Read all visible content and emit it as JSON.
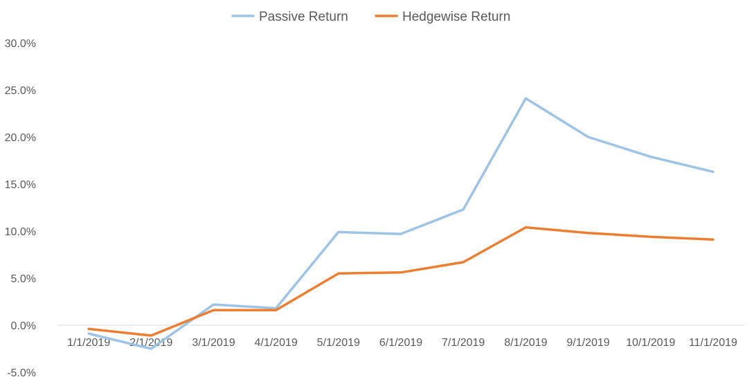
{
  "chart_data": {
    "type": "line",
    "categories": [
      "1/1/2019",
      "2/1/2019",
      "3/1/2019",
      "4/1/2019",
      "5/1/2019",
      "6/1/2019",
      "7/1/2019",
      "8/1/2019",
      "9/1/2019",
      "10/1/2019",
      "11/1/2019"
    ],
    "series": [
      {
        "name": "Passive Return",
        "color": "#9DC3E6",
        "values": [
          -0.009,
          -0.025,
          0.022,
          0.018,
          0.099,
          0.097,
          0.123,
          0.241,
          0.2,
          0.179,
          0.163
        ]
      },
      {
        "name": "Hedgewise Return",
        "color": "#ED7D31",
        "values": [
          -0.004,
          -0.011,
          0.016,
          0.016,
          0.055,
          0.056,
          0.067,
          0.104,
          0.098,
          0.094,
          0.091
        ]
      }
    ],
    "ylim": [
      -0.05,
      0.3
    ],
    "yticks": [
      -0.05,
      0.0,
      0.05,
      0.1,
      0.15,
      0.2,
      0.25,
      0.3
    ],
    "ytick_labels": [
      "-5.0%",
      "0.0%",
      "5.0%",
      "10.0%",
      "15.0%",
      "20.0%",
      "25.0%",
      "30.0%"
    ],
    "grid": false,
    "legend_position": "top-center",
    "axis_color": "#D9D9D9"
  }
}
